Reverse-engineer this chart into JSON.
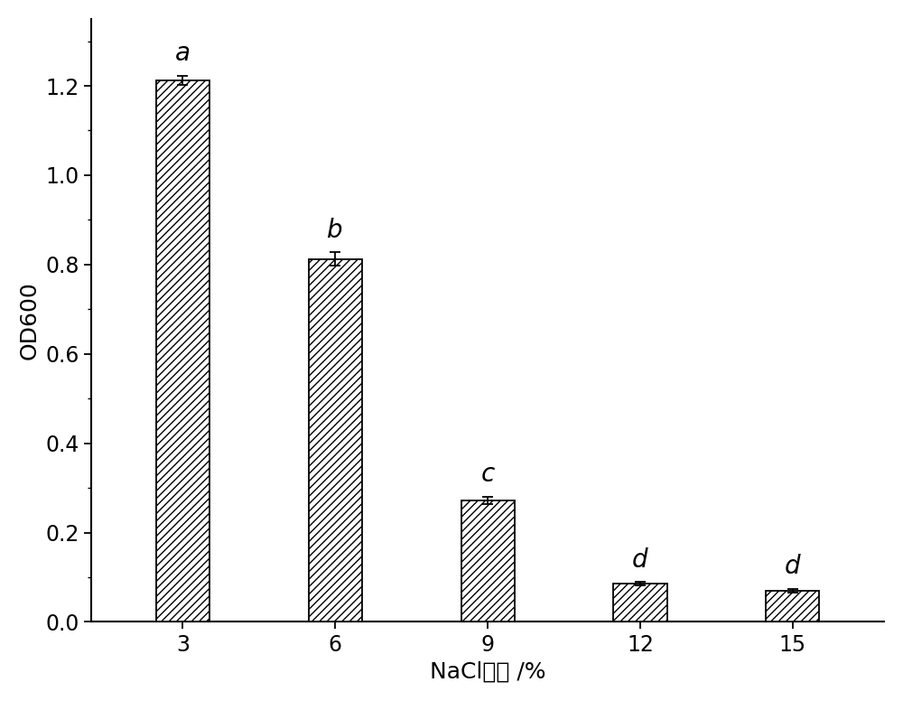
{
  "categories": [
    "3",
    "6",
    "9",
    "12",
    "15"
  ],
  "values": [
    1.213,
    0.812,
    0.272,
    0.085,
    0.07
  ],
  "errors": [
    0.01,
    0.015,
    0.008,
    0.004,
    0.004
  ],
  "letters": [
    "a",
    "b",
    "c",
    "d",
    "d"
  ],
  "xlabel": "NaCl浓度 /%",
  "ylabel": "OD600",
  "ylim": [
    0,
    1.35
  ],
  "yticks": [
    0.0,
    0.2,
    0.4,
    0.6,
    0.8,
    1.0,
    1.2
  ],
  "bar_color": "#ffffff",
  "bar_edgecolor": "#000000",
  "hatch": "////",
  "figsize": [
    10.0,
    7.76
  ],
  "dpi": 100,
  "bar_width": 0.35,
  "letter_fontsize": 20,
  "axis_label_fontsize": 18,
  "tick_fontsize": 17,
  "spine_linewidth": 1.5
}
